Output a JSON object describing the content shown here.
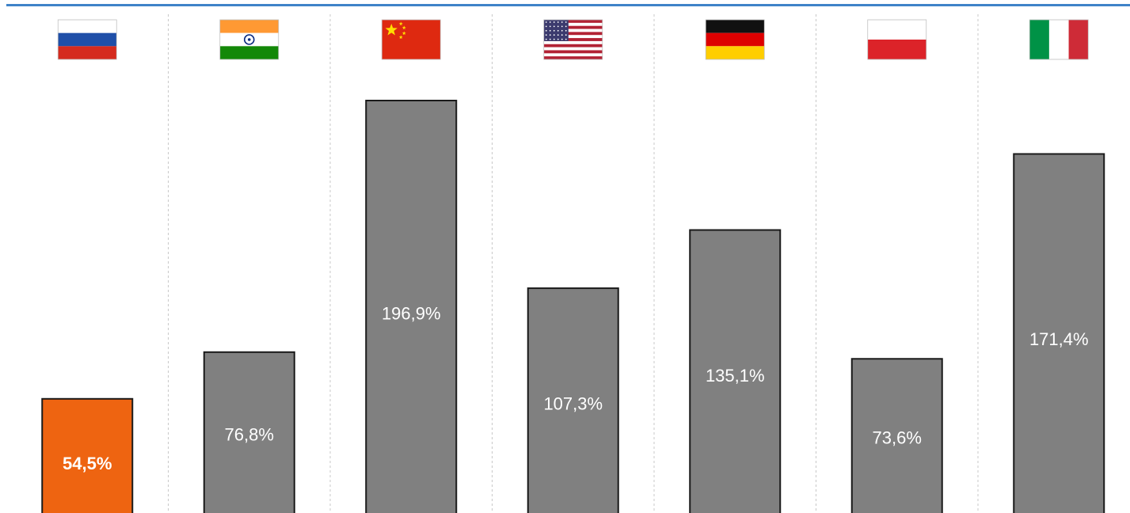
{
  "chart_data": {
    "type": "bar",
    "categories": [
      "Russia",
      "India",
      "China",
      "USA",
      "Germany",
      "Poland",
      "Italy"
    ],
    "flags": [
      "russia-flag",
      "india-flag",
      "china-flag",
      "usa-flag",
      "germany-flag",
      "poland-flag",
      "italy-flag"
    ],
    "values": [
      54.5,
      76.8,
      196.9,
      107.3,
      135.1,
      73.6,
      171.4
    ],
    "labels": [
      "54,5%",
      "76,8%",
      "196,9%",
      "107,3%",
      "135,1%",
      "73,6%",
      "171,4%"
    ],
    "highlight_index": 0,
    "colors": {
      "highlight": "#ee6411",
      "bar": "#808080",
      "bar_outline": "#1a1a1a",
      "label_text": "#ffffff",
      "accent_rule": "#3f83c8",
      "divider": "#c8c8c8"
    },
    "title": "",
    "xlabel": "",
    "ylabel": "",
    "ylim": [
      0,
      210
    ],
    "grid": false
  }
}
